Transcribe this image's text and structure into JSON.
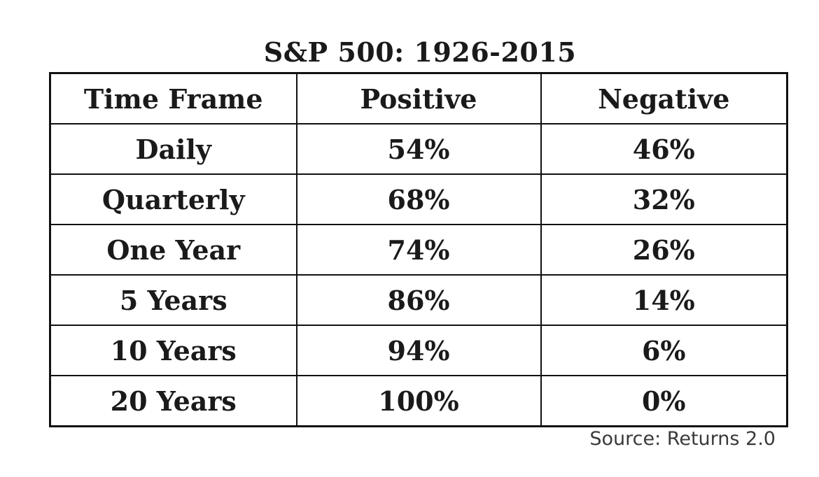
{
  "title": "S&P 500: 1926-2015",
  "table": {
    "headers": [
      "Time Frame",
      "Positive",
      "Negative"
    ],
    "rows": [
      [
        "Daily",
        "54%",
        "46%"
      ],
      [
        "Quarterly",
        "68%",
        "32%"
      ],
      [
        "One Year",
        "74%",
        "26%"
      ],
      [
        "5 Years",
        "86%",
        "14%"
      ],
      [
        "10 Years",
        "94%",
        "6%"
      ],
      [
        "20 Years",
        "100%",
        "0%"
      ]
    ]
  },
  "source": "Source: Returns 2.0"
}
